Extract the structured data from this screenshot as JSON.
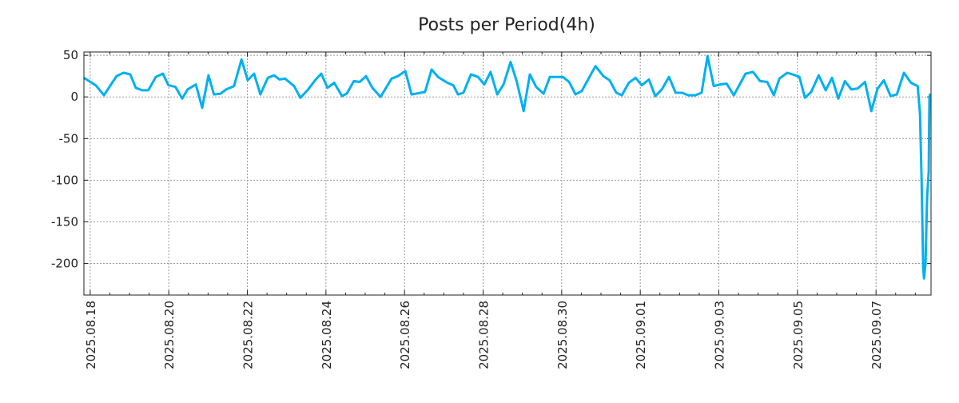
{
  "chart_data": {
    "type": "line",
    "title": "Posts per Period(4h)",
    "xlabel": "",
    "ylabel": "",
    "x_unit": "days since 2025.08.18",
    "xlim": [
      -0.16,
      21.4
    ],
    "ylim": [
      -238,
      54
    ],
    "grid": true,
    "legend": "none",
    "line_color": "#00b0f0",
    "x_ticks": [
      {
        "value": 0,
        "label": "2025.08.18"
      },
      {
        "value": 2,
        "label": "2025.08.20"
      },
      {
        "value": 4,
        "label": "2025.08.22"
      },
      {
        "value": 6,
        "label": "2025.08.24"
      },
      {
        "value": 8,
        "label": "2025.08.26"
      },
      {
        "value": 10,
        "label": "2025.08.28"
      },
      {
        "value": 12,
        "label": "2025.08.30"
      },
      {
        "value": 14,
        "label": "2025.09.01"
      },
      {
        "value": 16,
        "label": "2025.09.03"
      },
      {
        "value": 18,
        "label": "2025.09.05"
      },
      {
        "value": 20,
        "label": "2025.09.07"
      }
    ],
    "y_ticks": [
      {
        "value": 50,
        "label": "50"
      },
      {
        "value": 0,
        "label": "0"
      },
      {
        "value": -50,
        "label": "-50"
      },
      {
        "value": -100,
        "label": "-100"
      },
      {
        "value": -150,
        "label": "-150"
      },
      {
        "value": -200,
        "label": "-200"
      }
    ],
    "series": [
      {
        "name": "posts",
        "x": [
          -0.16,
          0.14,
          0.35,
          0.67,
          0.85,
          1.02,
          1.16,
          1.32,
          1.48,
          1.67,
          1.85,
          1.99,
          2.17,
          2.34,
          2.48,
          2.69,
          2.85,
          3.01,
          3.15,
          3.32,
          3.46,
          3.66,
          3.85,
          4.01,
          4.17,
          4.33,
          4.52,
          4.68,
          4.82,
          4.96,
          5.19,
          5.35,
          5.53,
          5.74,
          5.88,
          6.04,
          6.21,
          6.41,
          6.53,
          6.71,
          6.86,
          7.02,
          7.18,
          7.39,
          7.67,
          7.83,
          8.02,
          8.18,
          8.52,
          8.69,
          8.85,
          9.09,
          9.24,
          9.36,
          9.5,
          9.69,
          9.87,
          10.03,
          10.19,
          10.36,
          10.52,
          10.7,
          10.86,
          11.03,
          11.19,
          11.35,
          11.54,
          11.7,
          12.03,
          12.19,
          12.35,
          12.51,
          12.86,
          13.06,
          13.22,
          13.39,
          13.53,
          13.71,
          13.88,
          14.04,
          14.22,
          14.38,
          14.55,
          14.73,
          14.9,
          15.06,
          15.22,
          15.4,
          15.56,
          15.71,
          15.87,
          16.03,
          16.2,
          16.38,
          16.68,
          16.87,
          17.05,
          17.23,
          17.4,
          17.54,
          17.74,
          17.88,
          18.05,
          18.19,
          18.35,
          18.54,
          18.72,
          18.88,
          19.04,
          19.21,
          19.37,
          19.53,
          19.72,
          19.88,
          20.04,
          20.2,
          20.37,
          20.53,
          20.71,
          20.89,
          21.06,
          21.12,
          21.16,
          21.2,
          21.22,
          21.26,
          21.3,
          21.34,
          21.36,
          21.38
        ],
        "values": [
          23,
          14,
          2,
          25,
          29,
          27,
          11,
          8,
          8,
          24,
          28,
          14,
          12,
          -2,
          9,
          15,
          -13,
          26,
          3,
          4,
          9,
          13,
          45,
          20,
          28,
          3,
          23,
          26,
          21,
          22,
          13,
          -1,
          8,
          21,
          28,
          11,
          17,
          1,
          4,
          19,
          18,
          25,
          11,
          0,
          22,
          25,
          31,
          3,
          6,
          33,
          24,
          17,
          14,
          3,
          5,
          27,
          24,
          15,
          30,
          3,
          15,
          42,
          18,
          -17,
          27,
          12,
          4,
          24,
          24,
          18,
          3,
          7,
          37,
          25,
          20,
          5,
          2,
          17,
          23,
          14,
          21,
          1,
          9,
          24,
          5,
          5,
          2,
          2,
          5,
          49,
          13,
          15,
          16,
          2,
          28,
          30,
          19,
          18,
          2,
          22,
          29,
          27,
          24,
          -1,
          6,
          26,
          8,
          23,
          -2,
          19,
          9,
          10,
          18,
          -17,
          10,
          20,
          1,
          3,
          29,
          17,
          13,
          -20,
          -100,
          -205,
          -218,
          -200,
          -120,
          -90,
          0,
          4
        ]
      }
    ]
  }
}
